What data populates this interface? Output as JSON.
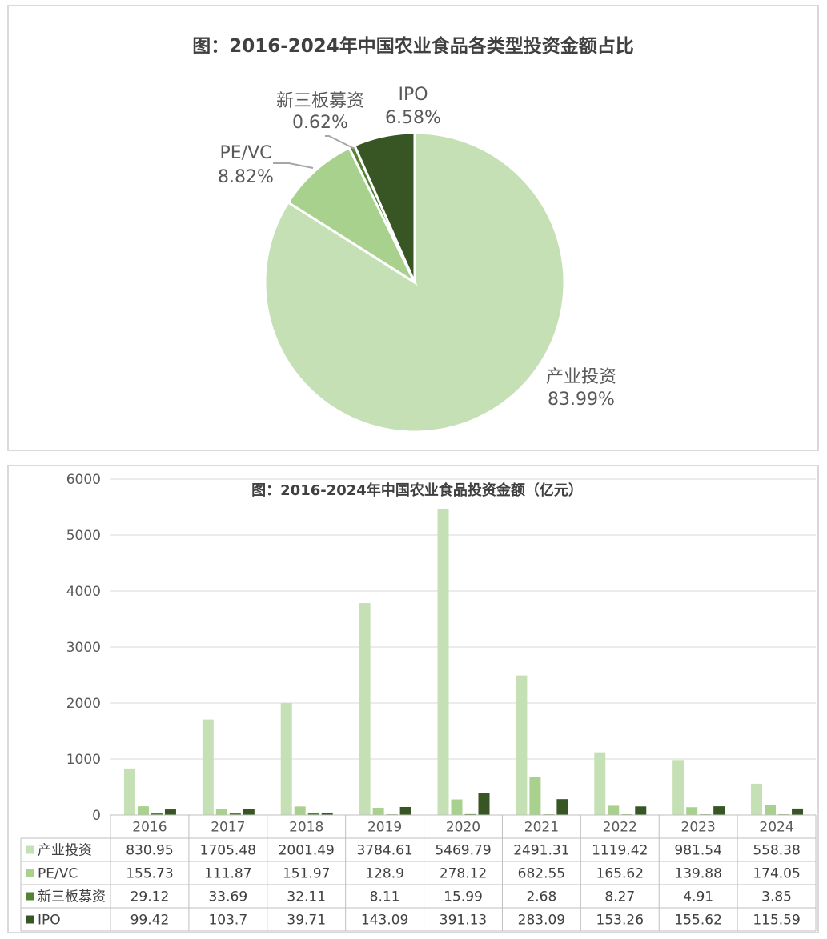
{
  "chart_data": [
    {
      "type": "pie",
      "title": "图：2016-2024年中国农业食品各类型投资金额占比",
      "slices": [
        {
          "name": "产业投资",
          "value": 83.99,
          "label": "83.99%",
          "color": "#c5e0b4"
        },
        {
          "name": "PE/VC",
          "value": 8.82,
          "label": "8.82%",
          "color": "#a9d18e"
        },
        {
          "name": "新三板募资",
          "value": 0.62,
          "label": "0.62%",
          "color": "#548235"
        },
        {
          "name": "IPO",
          "value": 6.58,
          "label": "6.58%",
          "color": "#375623"
        }
      ]
    },
    {
      "type": "bar",
      "title": "图：2016-2024年中国农业食品投资金额（亿元）",
      "categories": [
        "2016",
        "2017",
        "2018",
        "2019",
        "2020",
        "2021",
        "2022",
        "2023",
        "2024"
      ],
      "ylim": [
        0,
        6000
      ],
      "yticks": [
        "0",
        "1000",
        "2000",
        "3000",
        "4000",
        "5000",
        "6000"
      ],
      "grid": true,
      "legend": "data-table",
      "series": [
        {
          "name": "产业投资",
          "color": "#c5e0b4",
          "values": [
            830.95,
            1705.48,
            2001.49,
            3784.61,
            5469.79,
            2491.31,
            1119.42,
            981.54,
            558.38
          ],
          "labels": [
            "830.95",
            "1705.48",
            "2001.49",
            "3784.61",
            "5469.79",
            "2491.31",
            "1119.42",
            "981.54",
            "558.38"
          ]
        },
        {
          "name": "PE/VC",
          "color": "#a9d18e",
          "values": [
            155.73,
            111.87,
            151.97,
            128.9,
            278.12,
            682.55,
            165.62,
            139.88,
            174.05
          ],
          "labels": [
            "155.73",
            "111.87",
            "151.97",
            "128.9",
            "278.12",
            "682.55",
            "165.62",
            "139.88",
            "174.05"
          ]
        },
        {
          "name": "新三板募资",
          "color": "#548235",
          "values": [
            29.12,
            33.69,
            32.11,
            8.11,
            15.99,
            2.68,
            8.27,
            4.91,
            3.85
          ],
          "labels": [
            "29.12",
            "33.69",
            "32.11",
            "8.11",
            "15.99",
            "2.68",
            "8.27",
            "4.91",
            "3.85"
          ]
        },
        {
          "name": "IPO",
          "color": "#375623",
          "values": [
            99.42,
            103.7,
            39.71,
            143.09,
            391.13,
            283.09,
            153.26,
            155.62,
            115.59
          ],
          "labels": [
            "99.42",
            "103.7",
            "39.71",
            "143.09",
            "391.13",
            "283.09",
            "153.26",
            "155.62",
            "115.59"
          ]
        }
      ]
    }
  ]
}
